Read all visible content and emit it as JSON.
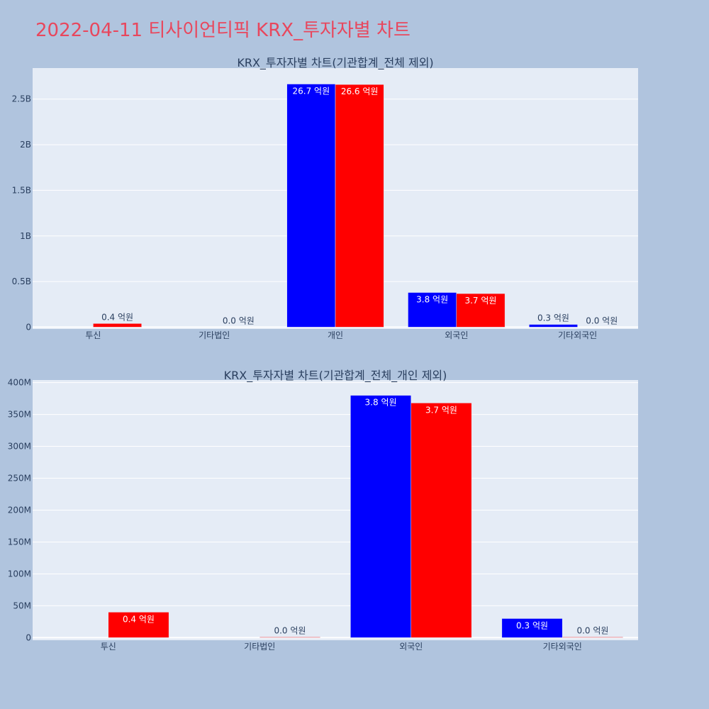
{
  "page_title": "2022-04-11 티사이언티픽 KRX_투자자별 차트",
  "colors": {
    "buy": "#0000ff",
    "sell": "#ff0000",
    "plot_bg": "#e5ecf6",
    "page_bg": "#b0c4de",
    "title": "#e8475d"
  },
  "chart_data": [
    {
      "type": "bar",
      "title": "KRX_투자자별 차트(기관합계_전체 제외)",
      "categories": [
        "투신",
        "기타법인",
        "개인",
        "외국인",
        "기타외국인"
      ],
      "series": [
        {
          "values": [
            0,
            0,
            2665000000,
            380000000,
            30000000
          ],
          "labels": [
            "",
            "",
            "26.7 억원",
            "3.8 억원",
            "0.3 억원"
          ]
        },
        {
          "values": [
            40000000,
            1000000,
            2660000000,
            368000000,
            1000000
          ],
          "labels": [
            "0.4 억원",
            "0.0 억원",
            "26.6 억원",
            "3.7 억원",
            "0.0 억원"
          ]
        }
      ],
      "y_ticks": [
        0,
        500000000,
        1000000000,
        1500000000,
        2000000000,
        2500000000
      ],
      "y_tick_labels": [
        "0",
        "0.5B",
        "1B",
        "1.5B",
        "2B",
        "2.5B"
      ],
      "ylim": [
        -20000000,
        2840000000
      ],
      "grid": true
    },
    {
      "type": "bar",
      "title": "KRX_투자자별 차트(기관합계_전체_개인 제외)",
      "categories": [
        "투신",
        "기타법인",
        "외국인",
        "기타외국인"
      ],
      "series": [
        {
          "values": [
            0,
            0,
            380000000,
            30000000
          ],
          "labels": [
            "",
            "",
            "3.8 억원",
            "0.3 억원"
          ]
        },
        {
          "values": [
            40000000,
            1000000,
            368000000,
            1000000
          ],
          "labels": [
            "0.4 억원",
            "0.0 억원",
            "3.7 억원",
            "0.0 억원"
          ]
        }
      ],
      "y_ticks": [
        0,
        50000000,
        100000000,
        150000000,
        200000000,
        250000000,
        300000000,
        350000000,
        400000000
      ],
      "y_tick_labels": [
        "0",
        "50M",
        "100M",
        "150M",
        "200M",
        "250M",
        "300M",
        "350M",
        "400M"
      ],
      "ylim": [
        -4000000,
        404000000
      ],
      "grid": true
    }
  ]
}
